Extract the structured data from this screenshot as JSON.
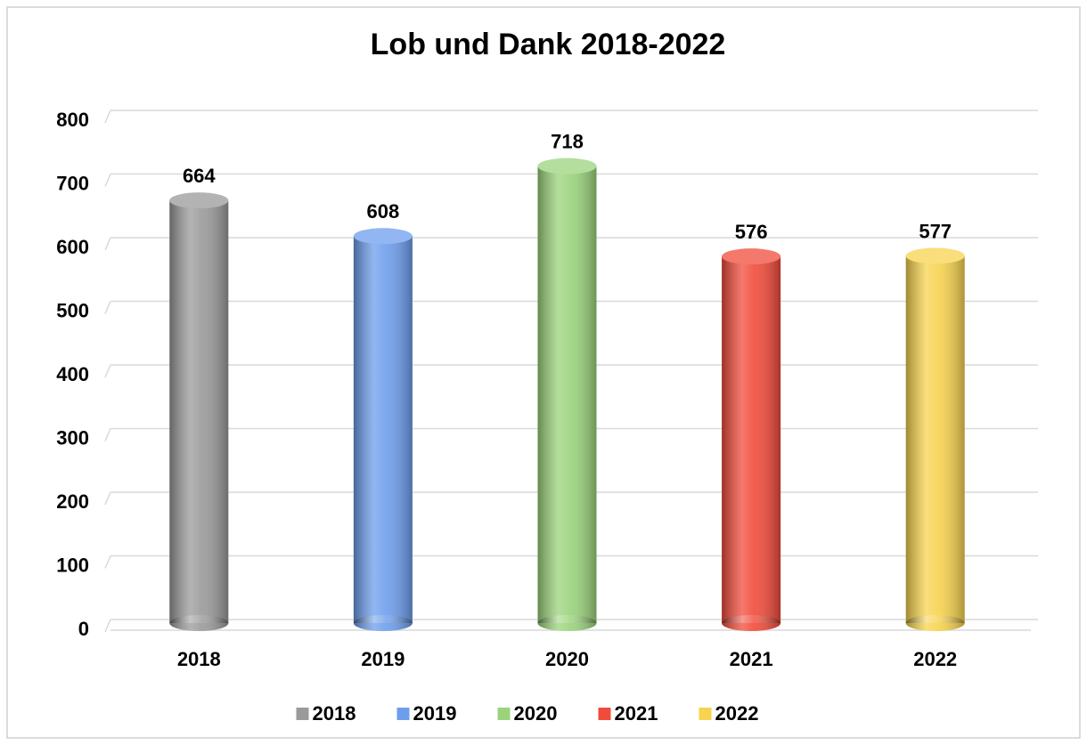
{
  "chart_data": {
    "type": "bar",
    "title": "Lob und Dank 2018-2022",
    "categories": [
      "2018",
      "2019",
      "2020",
      "2021",
      "2022"
    ],
    "values": [
      664,
      608,
      718,
      576,
      577
    ],
    "colors": [
      "#9a9a9a",
      "#6d9eec",
      "#9bd37c",
      "#f14b3b",
      "#f7d34f"
    ],
    "ylim": [
      0,
      800
    ],
    "yticks": [
      0,
      100,
      200,
      300,
      400,
      500,
      600,
      700,
      800
    ],
    "grid": true,
    "legend": "bottom"
  }
}
